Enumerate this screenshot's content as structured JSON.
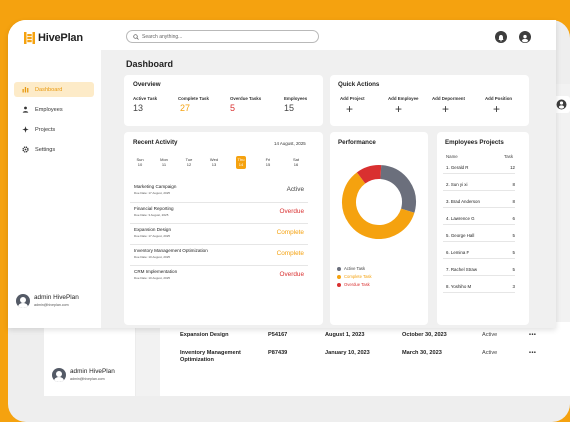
{
  "app": {
    "name": "HivePlan"
  },
  "search": {
    "placeholder": "Search anything..."
  },
  "sidebar": {
    "items": [
      {
        "label": "Dashboard",
        "icon": "chart-bars-icon",
        "active": true
      },
      {
        "label": "Employees",
        "icon": "user-icon",
        "active": false
      },
      {
        "label": "Projects",
        "icon": "sparkle-icon",
        "active": false
      },
      {
        "label": "Settings",
        "icon": "gear-icon",
        "active": false
      }
    ],
    "user": {
      "name": "admin HivePlan",
      "email": "admin@hiveplan.com"
    }
  },
  "page": {
    "title": "Dashboard"
  },
  "overview": {
    "title": "Overview",
    "stats": [
      {
        "label": "Active Task",
        "value": "13",
        "color": "#444444"
      },
      {
        "label": "Complete Task",
        "value": "27",
        "color": "#f5a20f"
      },
      {
        "label": "Overdue Tasks",
        "value": "5",
        "color": "#d93030"
      },
      {
        "label": "Employees",
        "value": "15",
        "color": "#444444"
      }
    ]
  },
  "quick_actions": {
    "title": "Quick Actions",
    "items": [
      {
        "label": "Add Project",
        "icon": "plus-icon"
      },
      {
        "label": "Add Employee",
        "icon": "plus-icon"
      },
      {
        "label": "Add Deporment",
        "icon": "plus-icon"
      },
      {
        "label": "Add Position",
        "icon": "plus-icon"
      }
    ]
  },
  "recent_activity": {
    "title": "Recent Activity",
    "date": "14 August, 2025",
    "days": [
      {
        "name": "Sun",
        "num": "10",
        "active": false
      },
      {
        "name": "Mon",
        "num": "11",
        "active": false
      },
      {
        "name": "Tue",
        "num": "12",
        "active": false
      },
      {
        "name": "Wed",
        "num": "13",
        "active": false
      },
      {
        "name": "Thu",
        "num": "14",
        "active": true
      },
      {
        "name": "Fri",
        "num": "15",
        "active": false
      },
      {
        "name": "Sat",
        "num": "16",
        "active": false
      }
    ],
    "items": [
      {
        "name": "Marketing Campaign",
        "due": "Due Date: 17 August, 2025",
        "status": "Active",
        "status_color": "#444444"
      },
      {
        "name": "Financial Reporting",
        "due": "Due Date: 3 August, 2025",
        "status": "Overdue",
        "status_color": "#d93030"
      },
      {
        "name": "Expansion Design",
        "due": "Due Date: 17 August, 2025",
        "status": "Complete",
        "status_color": "#f5a20f"
      },
      {
        "name": "Inventory Management Optimization",
        "due": "Due Date: 10 August, 2025",
        "status": "Complete",
        "status_color": "#f5a20f"
      },
      {
        "name": "CRM Implementation",
        "due": "Due Date: 10 August, 2025",
        "status": "Overdue",
        "status_color": "#d93030"
      }
    ]
  },
  "performance": {
    "title": "Performance",
    "legend": [
      {
        "label": "Active Task",
        "color": "#6b6f7c"
      },
      {
        "label": "Complete Task",
        "color": "#f5a20f"
      },
      {
        "label": "Overdue Task",
        "color": "#d93030"
      }
    ]
  },
  "chart_data": {
    "type": "pie",
    "title": "Performance",
    "categories": [
      "Active Task",
      "Complete Task",
      "Overdue Task"
    ],
    "values": [
      13,
      27,
      5
    ],
    "colors": [
      "#6b6f7c",
      "#f5a20f",
      "#d93030"
    ]
  },
  "employees_projects": {
    "title": "Employees Projects",
    "col_name": "Name",
    "col_task": "Task",
    "rows": [
      {
        "name": "1. Gerald R",
        "task": "12"
      },
      {
        "name": "2. Sun yi xi",
        "task": "8"
      },
      {
        "name": "3. Brad Anderson",
        "task": "8"
      },
      {
        "name": "4. Lawrence G",
        "task": "6"
      },
      {
        "name": "5. George Hall",
        "task": "5"
      },
      {
        "name": "6. Lemina F",
        "task": "5"
      },
      {
        "name": "7. Rachel Straw",
        "task": "5"
      },
      {
        "name": "8. Yoshiho M",
        "task": "3"
      }
    ]
  },
  "background_window": {
    "rows": [
      {
        "name": "Expansion Design",
        "id": "P54167",
        "start": "August 1, 2023",
        "end": "October 30, 2023",
        "status": "Active",
        "menu": "•••"
      },
      {
        "name": "Inventory Management Optimization",
        "id": "P87439",
        "start": "January 10, 2023",
        "end": "March 30, 2023",
        "status": "Active",
        "menu": "•••"
      }
    ],
    "user": {
      "name": "admin HivePlan",
      "email": "admin@hiveplan.com"
    }
  }
}
